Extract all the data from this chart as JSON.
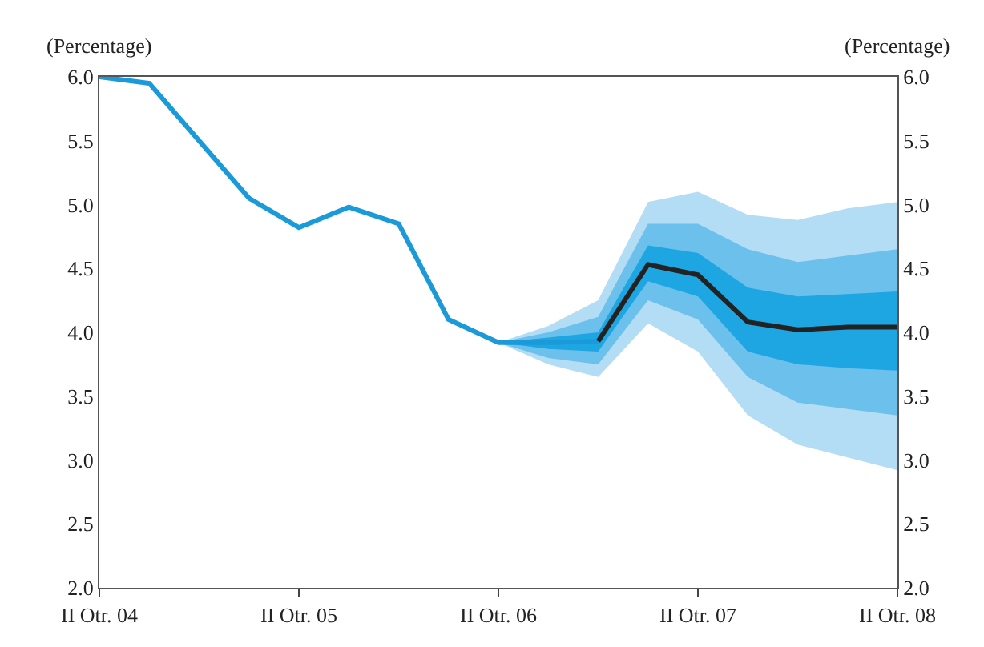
{
  "chart_data": {
    "type": "line",
    "ylabel": "(Percentage)",
    "y2label": "(Percentage)",
    "categories": [
      "II Otr. 04",
      null,
      null,
      null,
      "II Otr. 05",
      null,
      null,
      null,
      "II Otr. 06",
      null,
      null,
      null,
      "II Otr. 07",
      null,
      null,
      null,
      "II Otr. 08"
    ],
    "ylim": [
      2,
      6
    ],
    "yticks": [
      {
        "value": 2,
        "label": "2.0"
      },
      {
        "value": 2.5,
        "label": "2.5"
      },
      {
        "value": 3,
        "label": "3.0"
      },
      {
        "value": 3.5,
        "label": "3.5"
      },
      {
        "value": 4,
        "label": "4.0"
      },
      {
        "value": 4.5,
        "label": "4.5"
      },
      {
        "value": 5,
        "label": "5.0"
      },
      {
        "value": 5.5,
        "label": "5.5"
      },
      {
        "value": 6,
        "label": "6.0"
      }
    ],
    "y2lim": [
      2,
      6
    ],
    "y2ticks": [
      {
        "value": 2,
        "label": "2.0"
      },
      {
        "value": 2.5,
        "label": "2.5"
      },
      {
        "value": 3,
        "label": "3.0"
      },
      {
        "value": 3.5,
        "label": "3.5"
      },
      {
        "value": 4,
        "label": "4.0"
      },
      {
        "value": 4.5,
        "label": "4.5"
      },
      {
        "value": 5,
        "label": "5.0"
      },
      {
        "value": 5.5,
        "label": "5.5"
      },
      {
        "value": 6,
        "label": "6.0"
      }
    ],
    "marker": "none",
    "line_style": "solid",
    "series": [
      {
        "type": "area",
        "color": "#b3dcf5",
        "values": [
          null,
          null,
          null,
          null,
          null,
          null,
          null,
          null,
          null,
          null,
          null,
          null,
          null,
          null,
          null,
          null,
          null
        ],
        "lower": [
          null,
          null,
          null,
          null,
          null,
          null,
          null,
          null,
          3.92,
          3.75,
          3.65,
          4.07,
          3.85,
          3.35,
          3.12,
          3.02,
          2.92
        ],
        "upper": [
          null,
          null,
          null,
          null,
          null,
          null,
          null,
          null,
          3.92,
          4.05,
          4.25,
          5.02,
          5.1,
          4.92,
          4.88,
          4.97,
          5.02
        ]
      },
      {
        "type": "area",
        "color": "#6cc0ec",
        "values": [
          null,
          null,
          null,
          null,
          null,
          null,
          null,
          null,
          null,
          null,
          null,
          null,
          null,
          null,
          null,
          null,
          null
        ],
        "lower": [
          null,
          null,
          null,
          null,
          null,
          null,
          null,
          null,
          3.92,
          3.8,
          3.75,
          4.25,
          4.1,
          3.65,
          3.45,
          3.4,
          3.35
        ],
        "upper": [
          null,
          null,
          null,
          null,
          null,
          null,
          null,
          null,
          3.92,
          4.0,
          4.12,
          4.85,
          4.85,
          4.65,
          4.55,
          4.6,
          4.65
        ]
      },
      {
        "type": "area",
        "color": "#1ea6e2",
        "values": [
          null,
          null,
          null,
          null,
          null,
          null,
          null,
          null,
          null,
          null,
          null,
          null,
          null,
          null,
          null,
          null,
          null
        ],
        "lower": [
          null,
          null,
          null,
          null,
          null,
          null,
          null,
          null,
          3.92,
          3.87,
          3.85,
          4.4,
          4.28,
          3.85,
          3.75,
          3.72,
          3.7
        ],
        "upper": [
          null,
          null,
          null,
          null,
          null,
          null,
          null,
          null,
          3.92,
          3.96,
          4.0,
          4.68,
          4.62,
          4.35,
          4.28,
          4.3,
          4.32
        ]
      },
      {
        "color": "#1a9ad8",
        "values": [
          6.0,
          5.95,
          5.5,
          5.05,
          4.82,
          4.98,
          4.85,
          4.1,
          3.92,
          3.92,
          3.93,
          null,
          null,
          null,
          null,
          null,
          null
        ]
      },
      {
        "color": "#222222",
        "values": [
          null,
          null,
          null,
          null,
          null,
          null,
          null,
          null,
          null,
          null,
          3.93,
          4.53,
          4.45,
          4.08,
          4.02,
          4.04,
          4.04
        ]
      }
    ]
  }
}
